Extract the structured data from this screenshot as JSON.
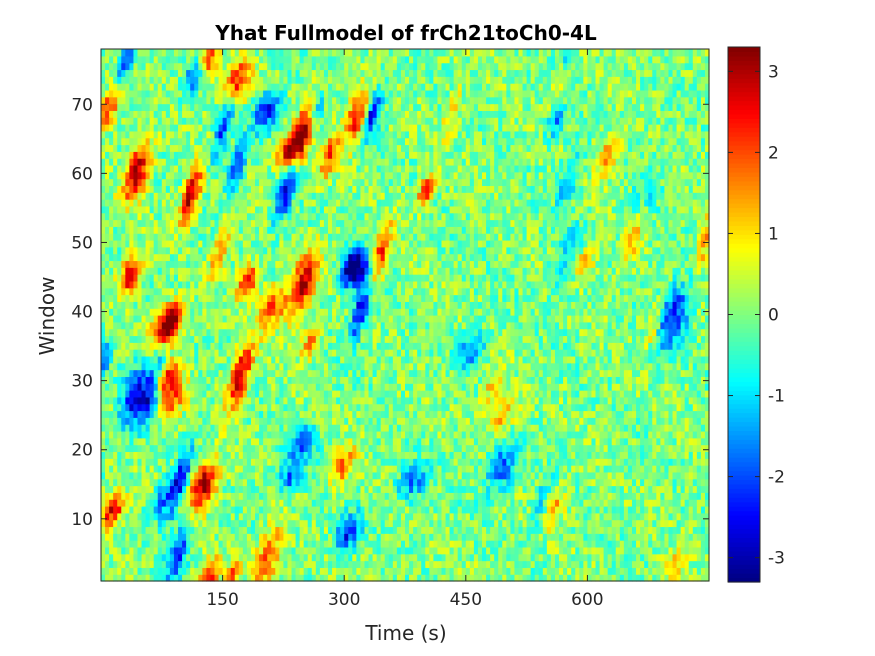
{
  "chart_data": {
    "type": "heatmap",
    "title": "Yhat Fullmodel of frCh21toCh0-4L",
    "xlabel": "Time (s)",
    "ylabel": "Window",
    "xlim": [
      0,
      750
    ],
    "ylim": [
      1,
      78
    ],
    "x_ticks": [
      150,
      300,
      450,
      600
    ],
    "y_ticks": [
      10,
      20,
      30,
      40,
      50,
      60,
      70
    ],
    "colorbar": {
      "colormap": "jet",
      "clim": [
        -3.3,
        3.3
      ],
      "ticks": [
        -3,
        -2,
        -1,
        0,
        1,
        2,
        3
      ]
    },
    "grid": false,
    "description_of_values": "Dense field of values mostly between -1 and 1 with diagonal streaks of high (red, up to ~3.3) and low (blue, down to ~-3.3) values, concentrated in the left half (Time < 400 s)."
  }
}
